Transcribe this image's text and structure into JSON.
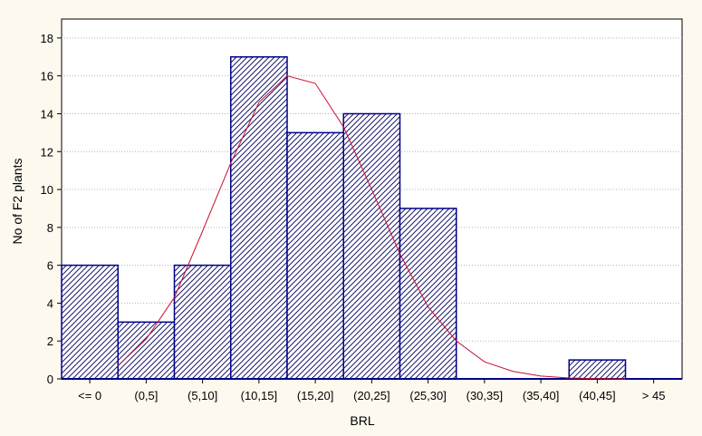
{
  "chart_data": {
    "type": "bar",
    "subtype": "histogram",
    "title": "",
    "xlabel": "BRL",
    "ylabel": "No of F2 plants",
    "categories": [
      "<= 0",
      "(0,5]",
      "(5,10]",
      "(10,15]",
      "(15,20]",
      "(20,25]",
      "(25,30]",
      "(30,35]",
      "(35,40]",
      "(40,45]",
      "> 45"
    ],
    "values": [
      6,
      3,
      6,
      17,
      13,
      14,
      9,
      0,
      0,
      1,
      0
    ],
    "ylim": [
      0,
      19
    ],
    "yticks": [
      0,
      2,
      4,
      6,
      8,
      10,
      12,
      14,
      16,
      18
    ],
    "grid": true,
    "bar_fill": "hatched",
    "colors": {
      "bar_stroke": "#00008b",
      "hatch": "#1a1a6e",
      "bar_background": "#ffffff",
      "curve": "#c8102e",
      "grid": "#b3b3b3",
      "background": "#fdf9ee",
      "plot_background": "#ffffff"
    },
    "fitted_curve": {
      "type": "normal",
      "points": [
        [
          0,
          0.7
        ],
        [
          2.5,
          2.1
        ],
        [
          5,
          4.3
        ],
        [
          7.5,
          7.8
        ],
        [
          10,
          11.4
        ],
        [
          12.5,
          14.6
        ],
        [
          15,
          16.0
        ],
        [
          17.5,
          15.6
        ],
        [
          20,
          13.3
        ],
        [
          22.5,
          10.0
        ],
        [
          25,
          6.6
        ],
        [
          27.5,
          3.8
        ],
        [
          30,
          2.0
        ],
        [
          32.5,
          0.9
        ],
        [
          35,
          0.4
        ],
        [
          37.5,
          0.15
        ],
        [
          40,
          0.05
        ],
        [
          42.5,
          0.01
        ],
        [
          45,
          0
        ]
      ]
    }
  }
}
